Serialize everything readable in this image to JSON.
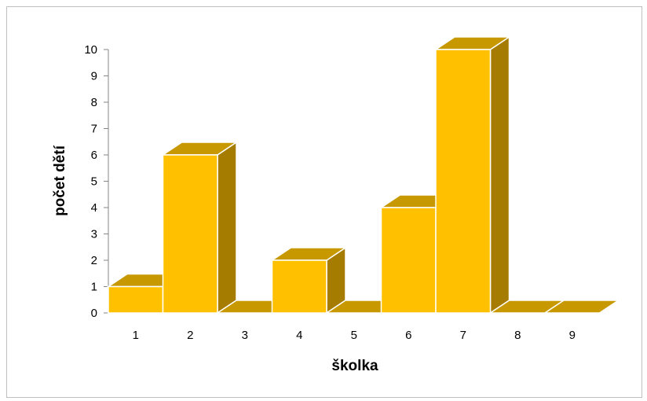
{
  "chart_data": {
    "type": "bar",
    "style": "3d-column",
    "categories": [
      "1",
      "2",
      "3",
      "4",
      "5",
      "6",
      "7",
      "8",
      "9"
    ],
    "values": [
      1,
      6,
      0,
      2,
      0,
      4,
      10,
      0,
      0
    ],
    "title": "",
    "xlabel": "školka",
    "ylabel": "počet dětí",
    "ylim": [
      0,
      10
    ],
    "yticks": [
      "0",
      "1",
      "2",
      "3",
      "4",
      "5",
      "6",
      "7",
      "8",
      "9",
      "10"
    ],
    "grid": false,
    "legend": "none",
    "colors": {
      "front": "#FFC000",
      "top": "#C79800",
      "side": "#A67C00",
      "edge": "#FFFFFF",
      "axis": "#868686"
    }
  }
}
